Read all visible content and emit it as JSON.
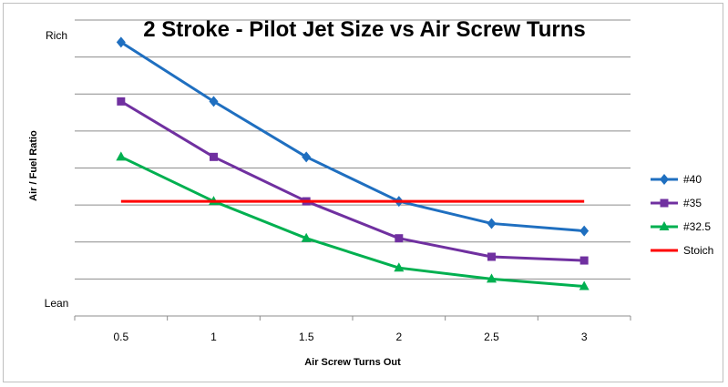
{
  "chart_data": {
    "type": "line",
    "title": "2 Stroke - Pilot Jet Size vs Air Screw Turns",
    "xlabel": "Air Screw Turns Out",
    "ylabel": "Air / Fuel Ratio",
    "x": [
      "0.5",
      "1",
      "1.5",
      "2",
      "2.5",
      "3"
    ],
    "ylim": [
      0,
      8
    ],
    "y_tick_labels": {
      "top": "Rich",
      "bottom": "Lean"
    },
    "grid": true,
    "legend_position": "right",
    "series": [
      {
        "name": "#40",
        "color": "#1f6fc0",
        "marker": "diamond",
        "values": [
          7.4,
          5.8,
          4.3,
          3.1,
          2.5,
          2.3
        ]
      },
      {
        "name": "#35",
        "color": "#7030a0",
        "marker": "square",
        "values": [
          5.8,
          4.3,
          3.1,
          2.1,
          1.6,
          1.5
        ]
      },
      {
        "name": "#32.5",
        "color": "#00b050",
        "marker": "triangle",
        "values": [
          4.3,
          3.1,
          2.1,
          1.3,
          1.0,
          0.8
        ]
      },
      {
        "name": "Stoich",
        "color": "#ff0000",
        "marker": "none",
        "values": [
          3.1,
          3.1,
          3.1,
          3.1,
          3.1,
          3.1
        ]
      }
    ]
  }
}
